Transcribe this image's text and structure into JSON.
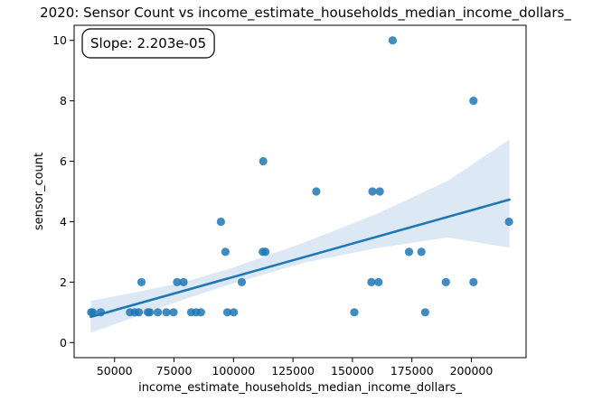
{
  "chart_data": {
    "type": "scatter",
    "title": "2020: Sensor Count vs income_estimate_households_median_income_dollars_",
    "xlabel": "income_estimate_households_median_income_dollars_",
    "ylabel": "sensor_count",
    "xlim": [
      33000,
      223000
    ],
    "ylim": [
      -0.5,
      10.5
    ],
    "xticks": [
      {
        "value": 50000,
        "label": "50000"
      },
      {
        "value": 75000,
        "label": "75000"
      },
      {
        "value": 100000,
        "label": "100000"
      },
      {
        "value": 125000,
        "label": "125000"
      },
      {
        "value": 150000,
        "label": "150000"
      },
      {
        "value": 175000,
        "label": "175000"
      },
      {
        "value": 200000,
        "label": "200000"
      }
    ],
    "yticks": [
      {
        "value": 0,
        "label": "0"
      },
      {
        "value": 2,
        "label": "2"
      },
      {
        "value": 4,
        "label": "4"
      },
      {
        "value": 6,
        "label": "6"
      },
      {
        "value": 8,
        "label": "8"
      },
      {
        "value": 10,
        "label": "10"
      }
    ],
    "annotation": "Slope: 2.203e-05",
    "grid": false,
    "points_color": "#1f77b4",
    "band_color": "#dce8f4",
    "points": [
      {
        "x": 40200,
        "y": 1
      },
      {
        "x": 40800,
        "y": 1
      },
      {
        "x": 44200,
        "y": 1
      },
      {
        "x": 56500,
        "y": 1
      },
      {
        "x": 58500,
        "y": 1
      },
      {
        "x": 60200,
        "y": 1
      },
      {
        "x": 61300,
        "y": 2
      },
      {
        "x": 64000,
        "y": 1
      },
      {
        "x": 64800,
        "y": 1
      },
      {
        "x": 68200,
        "y": 1
      },
      {
        "x": 71800,
        "y": 1
      },
      {
        "x": 74800,
        "y": 1
      },
      {
        "x": 76300,
        "y": 2
      },
      {
        "x": 79000,
        "y": 2
      },
      {
        "x": 82200,
        "y": 1
      },
      {
        "x": 84300,
        "y": 1
      },
      {
        "x": 86300,
        "y": 1
      },
      {
        "x": 94700,
        "y": 4
      },
      {
        "x": 96600,
        "y": 3
      },
      {
        "x": 97400,
        "y": 1
      },
      {
        "x": 100100,
        "y": 1
      },
      {
        "x": 103500,
        "y": 2
      },
      {
        "x": 112300,
        "y": 3
      },
      {
        "x": 112500,
        "y": 6
      },
      {
        "x": 113400,
        "y": 3
      },
      {
        "x": 134800,
        "y": 5
      },
      {
        "x": 150800,
        "y": 1
      },
      {
        "x": 158000,
        "y": 2
      },
      {
        "x": 158400,
        "y": 5
      },
      {
        "x": 161000,
        "y": 2
      },
      {
        "x": 161500,
        "y": 5
      },
      {
        "x": 166900,
        "y": 10
      },
      {
        "x": 173800,
        "y": 3
      },
      {
        "x": 179000,
        "y": 3
      },
      {
        "x": 180600,
        "y": 1
      },
      {
        "x": 189300,
        "y": 2
      },
      {
        "x": 200900,
        "y": 8
      },
      {
        "x": 200900,
        "y": 2
      },
      {
        "x": 215800,
        "y": 4
      }
    ],
    "regression": {
      "x_start": 40000,
      "x_end": 216000,
      "y_start": 0.85,
      "y_end": 4.73
    },
    "confidence_band": {
      "x": [
        40000,
        60000,
        80000,
        100000,
        110000,
        130000,
        160000,
        190000,
        216000
      ],
      "upper": [
        1.38,
        1.68,
        2.02,
        2.48,
        2.76,
        3.32,
        4.25,
        5.35,
        6.72
      ],
      "lower": [
        0.32,
        0.89,
        1.45,
        1.96,
        2.19,
        2.65,
        3.12,
        3.48,
        3.14
      ]
    }
  }
}
